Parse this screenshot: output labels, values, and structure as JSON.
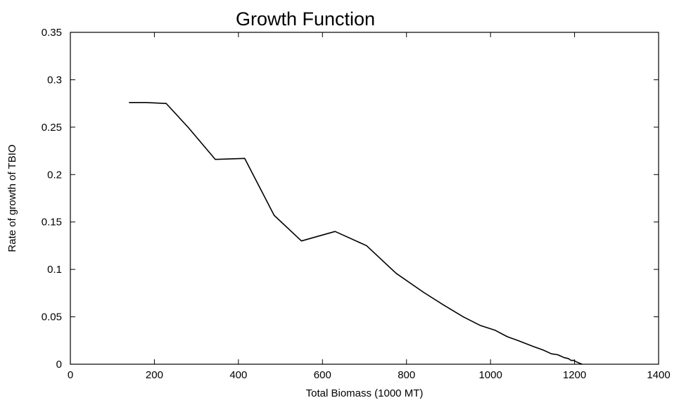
{
  "chart_data": {
    "type": "line",
    "title": "Growth Function",
    "xlabel": "Total Biomass (1000 MT)",
    "ylabel": "Rate of growth of TBIO",
    "xlim": [
      0,
      1400
    ],
    "ylim": [
      0,
      0.35
    ],
    "xticks": [
      0,
      200,
      400,
      600,
      800,
      1000,
      1200,
      1400
    ],
    "yticks": [
      0,
      0.05,
      0.1,
      0.15,
      0.2,
      0.25,
      0.3,
      0.35
    ],
    "xtick_labels": [
      "0",
      "200",
      "400",
      "600",
      "800",
      "1000",
      "1200",
      "1400"
    ],
    "ytick_labels": [
      "0",
      "0.05",
      "0.1",
      "0.15",
      "0.2",
      "0.25",
      "0.3",
      "0.35"
    ],
    "grid": false,
    "legend": false,
    "series": [
      {
        "color": "#000000",
        "x": [
          140,
          180,
          228,
          280,
          345,
          415,
          485,
          550,
          630,
          705,
          775,
          840,
          890,
          935,
          975,
          1010,
          1040,
          1065,
          1100,
          1125,
          1145,
          1160,
          1165,
          1175,
          1185,
          1192,
          1198,
          1202,
          1207,
          1212,
          1218
        ],
        "y": [
          0.276,
          0.276,
          0.275,
          0.25,
          0.216,
          0.217,
          0.157,
          0.13,
          0.14,
          0.125,
          0.096,
          0.076,
          0.062,
          0.05,
          0.041,
          0.036,
          0.029,
          0.025,
          0.019,
          0.015,
          0.011,
          0.01,
          0.009,
          0.007,
          0.006,
          0.004,
          0.004,
          0.003,
          0.002,
          0.001,
          0.0
        ]
      }
    ]
  }
}
